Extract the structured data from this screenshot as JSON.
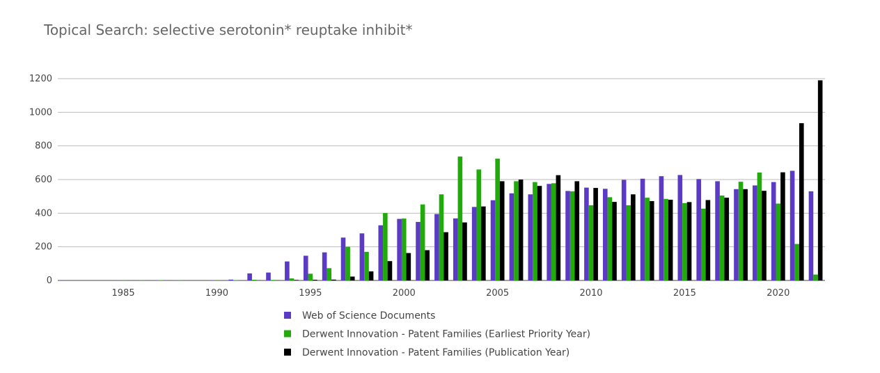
{
  "chart_data": {
    "type": "bar",
    "title": "Topical Search: selective serotonin* reuptake inhibit*",
    "xlabel": "",
    "ylabel": "",
    "ylim": [
      0,
      1200
    ],
    "yticks": [
      0,
      200,
      400,
      600,
      800,
      1000,
      1200
    ],
    "xticks": [
      1985,
      1990,
      1995,
      2000,
      2005,
      2010,
      2015,
      2020
    ],
    "grid": true,
    "legend_position": "bottom",
    "colors": [
      "#5c3bc4",
      "#22aa0c",
      "#000000"
    ],
    "categories": [
      1982,
      1983,
      1984,
      1985,
      1986,
      1987,
      1988,
      1989,
      1990,
      1991,
      1992,
      1993,
      1994,
      1995,
      1996,
      1997,
      1998,
      1999,
      2000,
      2001,
      2002,
      2003,
      2004,
      2005,
      2006,
      2007,
      2008,
      2009,
      2010,
      2011,
      2012,
      2013,
      2014,
      2015,
      2016,
      2017,
      2018,
      2019,
      2020,
      2021,
      2022
    ],
    "series": [
      {
        "name": "Web of Science Documents",
        "values": [
          1,
          0,
          0,
          1,
          0,
          1,
          1,
          0,
          2,
          5,
          42,
          47,
          113,
          147,
          167,
          255,
          280,
          328,
          366,
          348,
          395,
          369,
          437,
          477,
          518,
          512,
          574,
          532,
          552,
          545,
          598,
          605,
          620,
          627,
          603,
          590,
          543,
          565,
          585,
          652,
          530
        ]
      },
      {
        "name": "Derwent Innovation - Patent Families (Earliest Priority Year)",
        "values": [
          0,
          0,
          0,
          1,
          1,
          2,
          1,
          0,
          1,
          2,
          4,
          3,
          12,
          40,
          73,
          200,
          170,
          401,
          368,
          452,
          512,
          737,
          660,
          724,
          590,
          585,
          578,
          530,
          447,
          495,
          447,
          492,
          485,
          460,
          427,
          505,
          587,
          642,
          457,
          217,
          35
        ]
      },
      {
        "name": "Derwent Innovation - Patent Families (Publication Year)",
        "values": [
          0,
          0,
          0,
          0,
          0,
          0,
          0,
          0,
          0,
          0,
          1,
          1,
          3,
          4,
          5,
          23,
          54,
          115,
          163,
          180,
          287,
          345,
          440,
          590,
          600,
          562,
          626,
          590,
          550,
          467,
          512,
          472,
          480,
          466,
          478,
          492,
          543,
          533,
          643,
          935,
          1190
        ]
      }
    ]
  }
}
